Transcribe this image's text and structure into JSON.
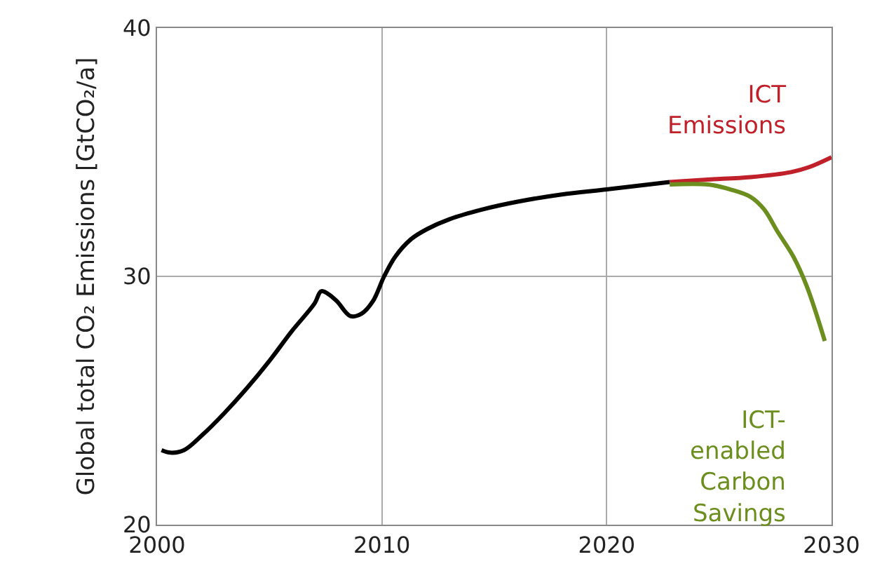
{
  "chart_data": {
    "type": "line",
    "ylabel": "Global total CO₂ Emissions [GtCO₂/a]",
    "xlim": [
      2000,
      2030
    ],
    "ylim": [
      20,
      40
    ],
    "xticks": [
      2000,
      2010,
      2020,
      2030
    ],
    "yticks": [
      20,
      30,
      40
    ],
    "grid": true,
    "legend": false,
    "marker": "none",
    "line_style": "solid",
    "series": [
      {
        "color": "#000000",
        "x": [
          2000.2,
          2000.6,
          2001.2,
          2002,
          2003,
          2004,
          2005,
          2006,
          2007,
          2007.3,
          2007.6,
          2008,
          2008.6,
          2009.1,
          2009.6,
          2010.1,
          2010.6,
          2011.3,
          2012,
          2013,
          2014.5,
          2016,
          2018,
          2020,
          2022.8
        ],
        "values": [
          23.0,
          22.9,
          23.0,
          23.6,
          24.5,
          25.5,
          26.6,
          27.8,
          28.9,
          29.4,
          29.3,
          29.0,
          28.4,
          28.5,
          29.0,
          30.0,
          30.8,
          31.5,
          31.9,
          32.3,
          32.7,
          33.0,
          33.3,
          33.5,
          33.8
        ]
      },
      {
        "name": "ICT Emissions",
        "color": "#c0202a",
        "x": [
          2022.8,
          2024.5,
          2026.4,
          2028.2,
          2029,
          2030
        ],
        "values": [
          33.8,
          33.9,
          34.0,
          34.2,
          34.4,
          34.8
        ]
      },
      {
        "name": "ICT-enabled Carbon Savings",
        "color": "#6b8e1e",
        "x": [
          2022.8,
          2024.5,
          2025.5,
          2026.4,
          2027,
          2027.6,
          2028.3,
          2028.9,
          2029.7
        ],
        "values": [
          33.7,
          33.7,
          33.5,
          33.2,
          32.7,
          31.8,
          30.8,
          29.6,
          27.4
        ]
      }
    ]
  }
}
